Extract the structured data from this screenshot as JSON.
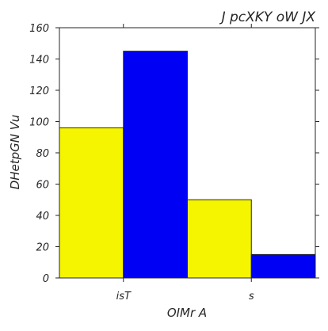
{
  "chart_data": {
    "type": "bar",
    "title": "J pcXKY oW JX",
    "xlabel": "OIMr  A",
    "ylabel": "DHetpGN Vu",
    "categories": [
      "isT",
      "s"
    ],
    "series": [
      {
        "values": [
          96,
          50
        ],
        "color": "#f5f500"
      },
      {
        "values": [
          145,
          15
        ],
        "color": "#0000f5"
      }
    ],
    "ylim": [
      0,
      160
    ],
    "yticks": [
      0,
      20,
      40,
      60,
      80,
      100,
      120,
      140,
      160
    ],
    "grid": false,
    "legend": "none"
  }
}
